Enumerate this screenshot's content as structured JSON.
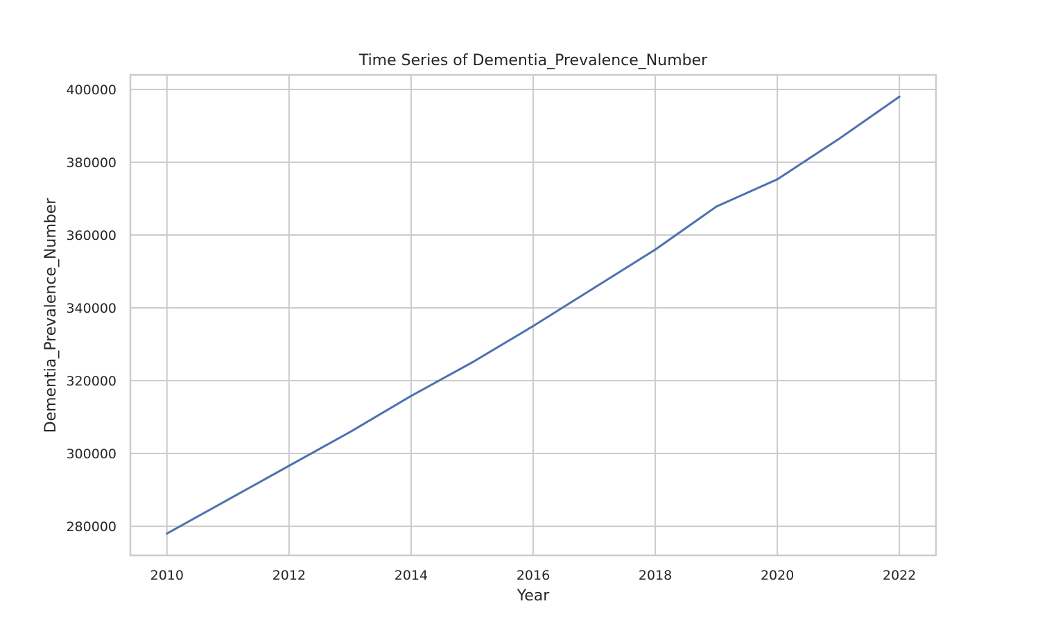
{
  "chart_data": {
    "type": "line",
    "title": "Time Series of Dementia_Prevalence_Number",
    "xlabel": "Year",
    "ylabel": "Dementia_Prevalence_Number",
    "xlim": [
      2009.4,
      2022.6
    ],
    "ylim": [
      272000,
      404000
    ],
    "x_ticks": [
      2010,
      2012,
      2014,
      2016,
      2018,
      2020,
      2022
    ],
    "y_ticks": [
      280000,
      300000,
      320000,
      340000,
      360000,
      380000,
      400000
    ],
    "grid": true,
    "series": [
      {
        "color": "#4c72b0",
        "x": [
          2010,
          2011,
          2012,
          2013,
          2014,
          2015,
          2016,
          2017,
          2018,
          2019,
          2020,
          2021,
          2022
        ],
        "y": [
          278000,
          287300,
          296600,
          305900,
          315800,
          325000,
          335000,
          345500,
          356000,
          367800,
          375300,
          386300,
          398000
        ]
      }
    ]
  }
}
